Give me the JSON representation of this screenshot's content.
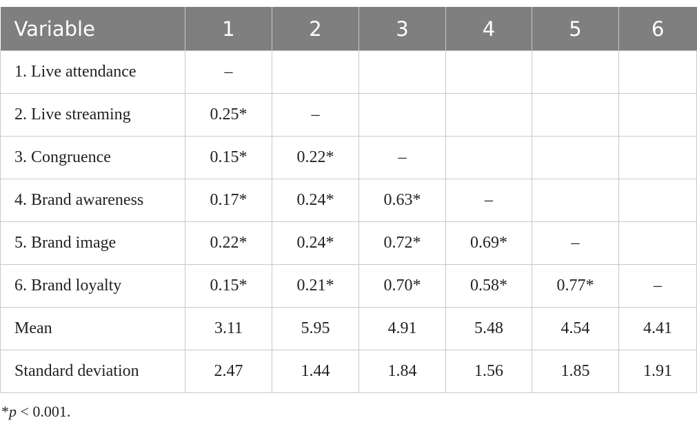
{
  "table": {
    "header": [
      "Variable",
      "1",
      "2",
      "3",
      "4",
      "5",
      "6"
    ],
    "rows": [
      [
        "1. Live attendance",
        "–"
      ],
      [
        "2. Live streaming",
        "0.25*",
        "–"
      ],
      [
        "3. Congruence",
        "0.15*",
        "0.22*",
        "–"
      ],
      [
        "4. Brand awareness",
        "0.17*",
        "0.24*",
        "0.63*",
        "–"
      ],
      [
        "5. Brand image",
        "0.22*",
        "0.24*",
        "0.72*",
        "0.69*",
        "–"
      ],
      [
        "6. Brand loyalty",
        "0.15*",
        "0.21*",
        "0.70*",
        "0.58*",
        "0.77*",
        "–"
      ],
      [
        "Mean",
        "3.11",
        "5.95",
        "4.91",
        "5.48",
        "4.54",
        "4.41"
      ],
      [
        "Standard deviation",
        "2.47",
        "1.44",
        "1.84",
        "1.56",
        "1.85",
        "1.91"
      ]
    ]
  },
  "footnote": {
    "marker": "*",
    "italic": "p",
    "text": " < 0.001."
  }
}
